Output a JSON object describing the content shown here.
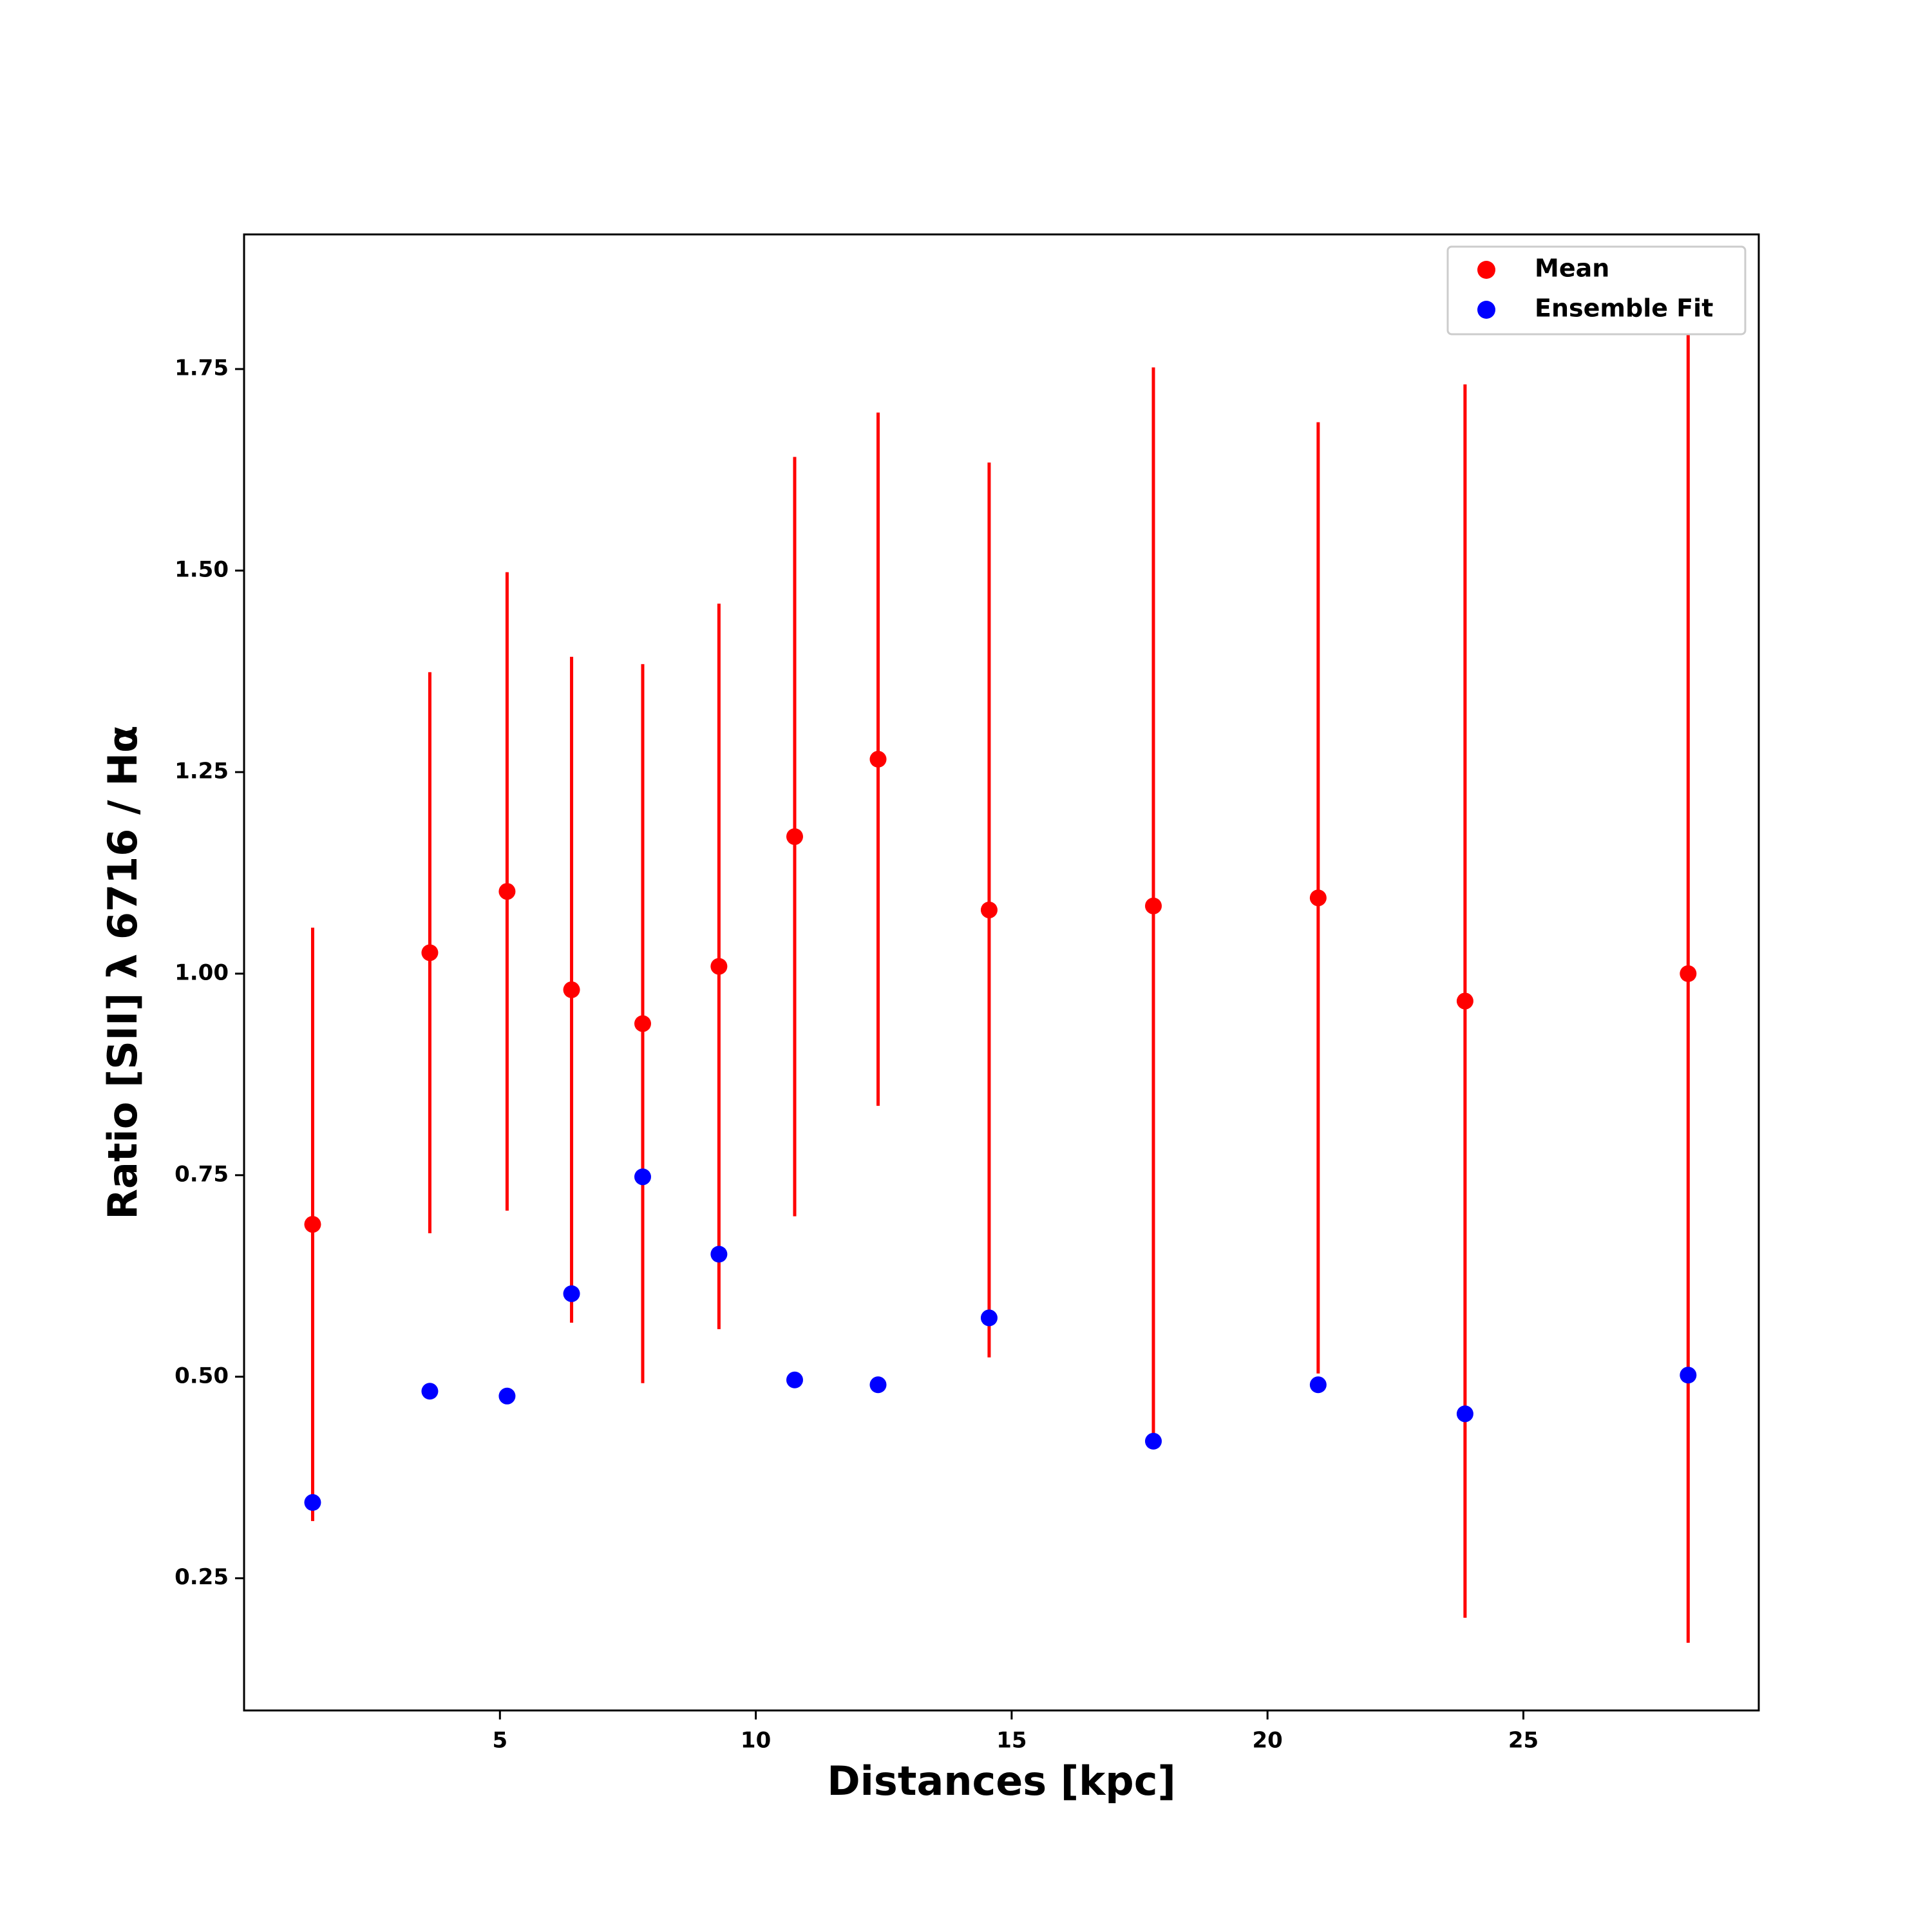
{
  "chart_data": {
    "type": "scatter",
    "x_label": "Distances [kpc]",
    "y_label": "Ratio [SII] λ 6716 / Hα",
    "xlim": [
      0.0,
      29.6
    ],
    "ylim": [
      0.086,
      1.917
    ],
    "xticks": [
      5,
      10,
      15,
      20,
      25
    ],
    "yticks": [
      {
        "value": 0.25,
        "label": "0.25"
      },
      {
        "value": 0.5,
        "label": "0.50"
      },
      {
        "value": 0.75,
        "label": "0.75"
      },
      {
        "value": 1.0,
        "label": "1.00"
      },
      {
        "value": 1.25,
        "label": "1.25"
      },
      {
        "value": 1.5,
        "label": "1.50"
      },
      {
        "value": 1.75,
        "label": "1.75"
      }
    ],
    "x": [
      1.34,
      3.63,
      5.14,
      6.4,
      7.79,
      9.28,
      10.76,
      12.39,
      14.56,
      17.77,
      20.99,
      23.86,
      28.22
    ],
    "series": [
      {
        "name": "Mean",
        "color": "#ff0000",
        "values": [
          0.689,
          1.026,
          1.102,
          0.98,
          0.938,
          1.009,
          1.17,
          1.266,
          1.079,
          1.084,
          1.094,
          0.966,
          1.0
        ],
        "errors": [
          0.368,
          0.348,
          0.396,
          0.413,
          0.446,
          0.45,
          0.471,
          0.43,
          0.555,
          0.668,
          0.59,
          0.765,
          0.83
        ]
      },
      {
        "name": "Ensemble Fit",
        "color": "#0000ff",
        "values": [
          0.344,
          0.482,
          0.476,
          0.603,
          0.748,
          0.652,
          0.496,
          0.49,
          0.573,
          0.42,
          0.49,
          0.454,
          0.502
        ]
      }
    ],
    "legend": "upper right"
  }
}
